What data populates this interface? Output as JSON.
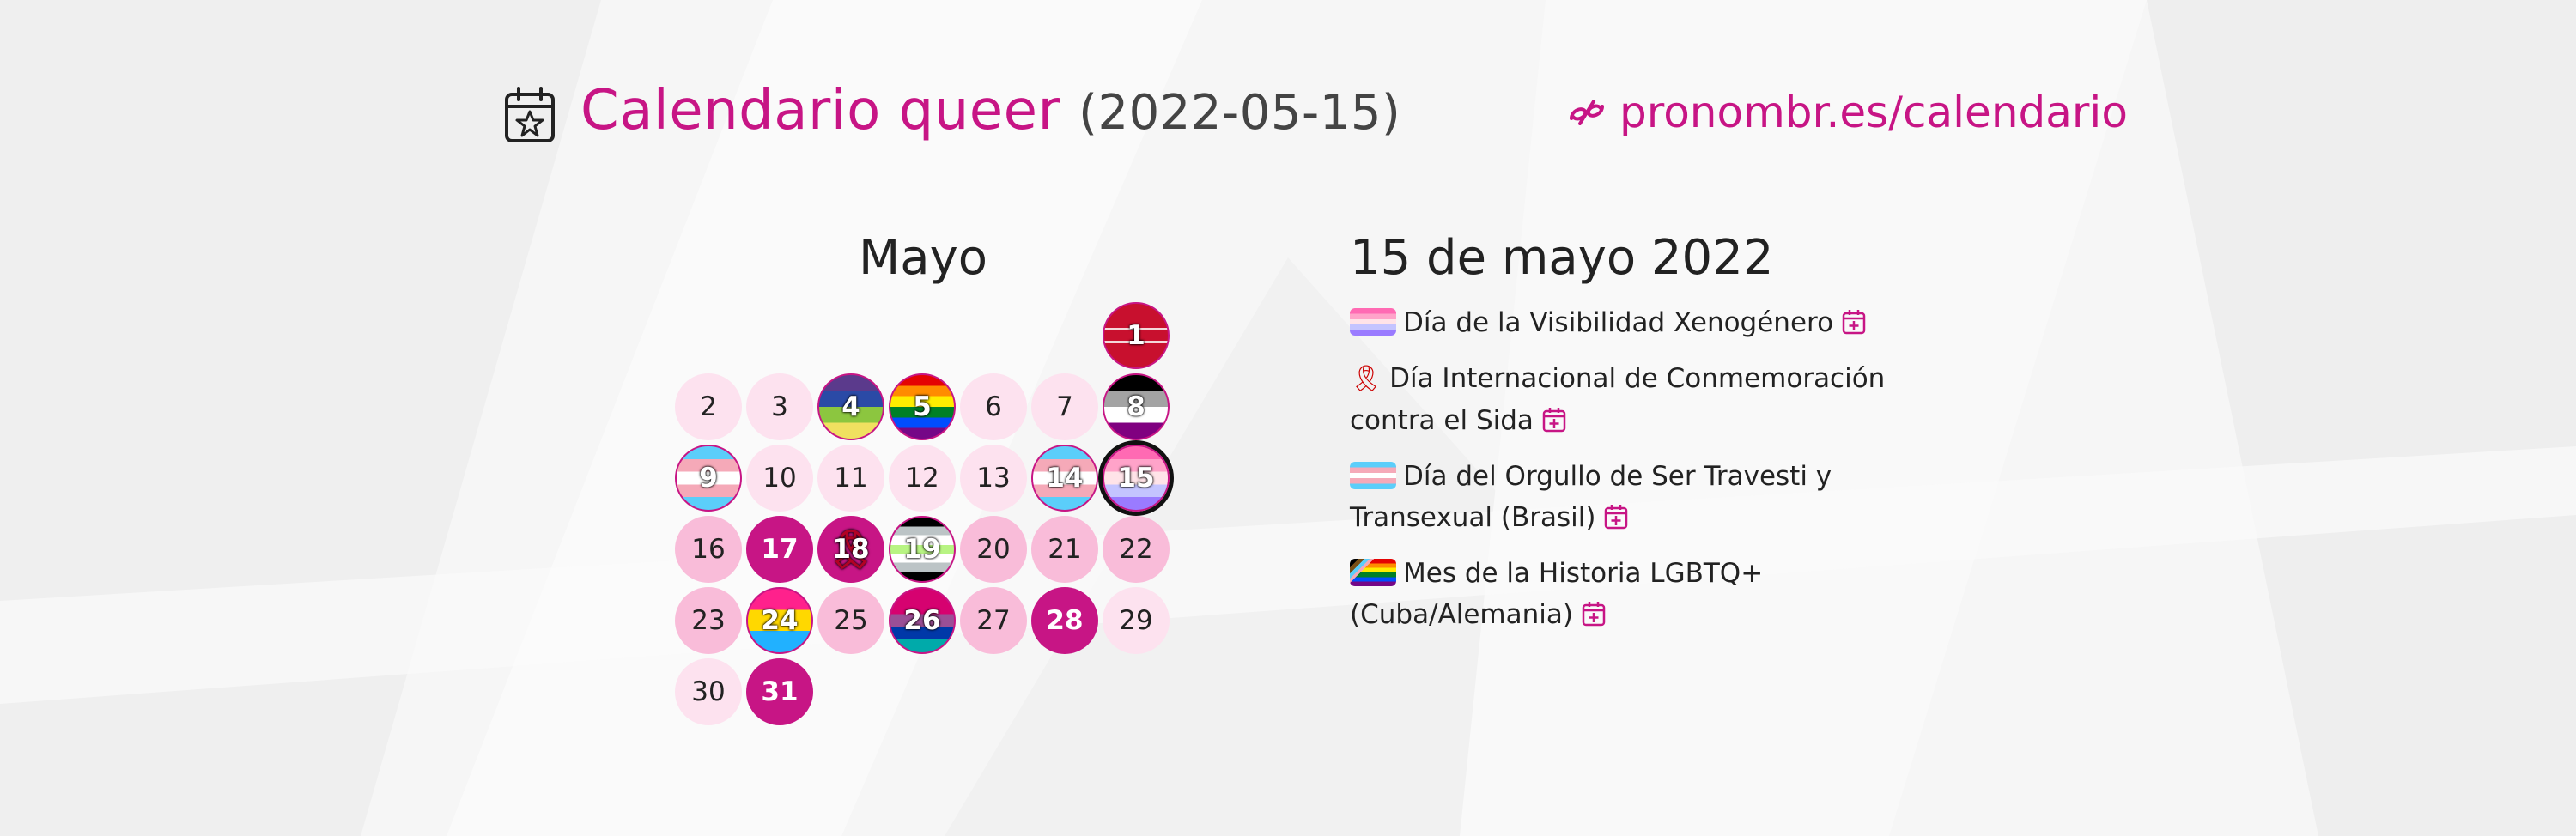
{
  "header": {
    "title": "Calendario queer",
    "date": "(2022-05-15)",
    "brand_url": "pronombr.es/calendario"
  },
  "calendar": {
    "month": "Mayo",
    "days": [
      {
        "num": "1",
        "style": "flag-red"
      },
      {
        "num": "2",
        "style": "t0"
      },
      {
        "num": "3",
        "style": "t0"
      },
      {
        "num": "4",
        "style": "flag-bi-green"
      },
      {
        "num": "5",
        "style": "flag-rainbow"
      },
      {
        "num": "6",
        "style": "t0"
      },
      {
        "num": "7",
        "style": "t0"
      },
      {
        "num": "8",
        "style": "flag-ace"
      },
      {
        "num": "9",
        "style": "flag-trans"
      },
      {
        "num": "10",
        "style": "t0"
      },
      {
        "num": "11",
        "style": "t0"
      },
      {
        "num": "12",
        "style": "t0"
      },
      {
        "num": "13",
        "style": "t0"
      },
      {
        "num": "14",
        "style": "flag-trans"
      },
      {
        "num": "15",
        "style": "flag-xeno",
        "today": true
      },
      {
        "num": "16",
        "style": "t1"
      },
      {
        "num": "17",
        "style": "t3"
      },
      {
        "num": "18",
        "style": "flag-ribbon"
      },
      {
        "num": "19",
        "style": "flag-agender"
      },
      {
        "num": "20",
        "style": "t1"
      },
      {
        "num": "21",
        "style": "t1"
      },
      {
        "num": "22",
        "style": "t1"
      },
      {
        "num": "23",
        "style": "t1"
      },
      {
        "num": "24",
        "style": "flag-pan"
      },
      {
        "num": "25",
        "style": "t1"
      },
      {
        "num": "26",
        "style": "flag-bi"
      },
      {
        "num": "27",
        "style": "t1"
      },
      {
        "num": "28",
        "style": "t3"
      },
      {
        "num": "29",
        "style": "t0"
      },
      {
        "num": "30",
        "style": "t0"
      },
      {
        "num": "31",
        "style": "t3"
      }
    ]
  },
  "events": {
    "date": "15 de mayo 2022",
    "items": [
      {
        "icon": "xenogender-flag-icon",
        "text": "Día de la Visibilidad Xenogénero"
      },
      {
        "icon": "red-ribbon-icon",
        "text": "Día Internacional de Conmemoración contra el Sida"
      },
      {
        "icon": "trans-flag-icon",
        "text": "Día del Orgullo de Ser Travesti y Transexual (Brasil)"
      },
      {
        "icon": "progress-flag-icon",
        "text": "Mes de la Historia LGBTQ+ (Cuba/Alemania)"
      }
    ]
  },
  "colors": {
    "accent": "#c71585",
    "text": "#222222",
    "day_light": "#fde2ef",
    "day_mid": "#f9bcd9",
    "day_strong": "#c71585"
  },
  "icons": {
    "title": "calendar-star-icon",
    "brand": "pronombres-logo-icon",
    "add": "calendar-add-icon"
  }
}
